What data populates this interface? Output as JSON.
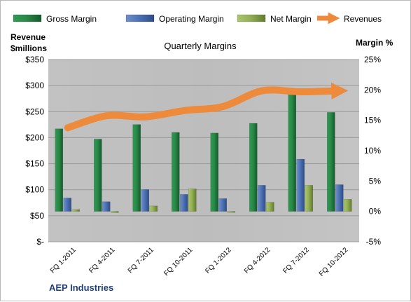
{
  "chart_data": {
    "type": "bar",
    "title": "Quarterly Margins",
    "footer": "AEP Industries",
    "y_left_label_line1": "Revenue",
    "y_left_label_line2": "$millions",
    "y_right_label": "Margin %",
    "categories": [
      "FQ 1-2011",
      "FQ 4-2011",
      "FQ 7-2011",
      "FQ 10-2011",
      "FQ 1-2012",
      "FQ 4-2012",
      "FQ 7-2012",
      "FQ 10-2012"
    ],
    "y_left": {
      "min": 0,
      "max": 350,
      "step": 50,
      "ticks": [
        "$-",
        "$50",
        "$100",
        "$150",
        "$200",
        "$250",
        "$300",
        "$350"
      ]
    },
    "y_right": {
      "min": -5,
      "max": 25,
      "step": 5,
      "ticks": [
        "-5%",
        "0%",
        "5%",
        "10%",
        "15%",
        "20%",
        "25%"
      ]
    },
    "series": [
      {
        "name": "Gross Margin",
        "axis": "right",
        "kind": "bar",
        "color": "#1e7a3f",
        "values": [
          13.6,
          11.9,
          14.3,
          13.0,
          12.9,
          14.5,
          19.5,
          16.3
        ]
      },
      {
        "name": "Operating Margin",
        "axis": "right",
        "kind": "bar",
        "color": "#3f64a8",
        "values": [
          2.2,
          1.6,
          3.6,
          2.8,
          2.1,
          4.3,
          8.6,
          4.4
        ]
      },
      {
        "name": "Net Margin",
        "axis": "right",
        "kind": "bar",
        "color": "#7f9a3c",
        "values": [
          0.3,
          -0.2,
          0.9,
          3.7,
          -0.1,
          1.5,
          4.3,
          2.0
        ]
      },
      {
        "name": "Revenues",
        "axis": "left",
        "kind": "line",
        "color": "#ee8a3c",
        "values": [
          219,
          242,
          240,
          252,
          260,
          290,
          288,
          290
        ]
      }
    ],
    "grid": true,
    "legend": "top"
  }
}
